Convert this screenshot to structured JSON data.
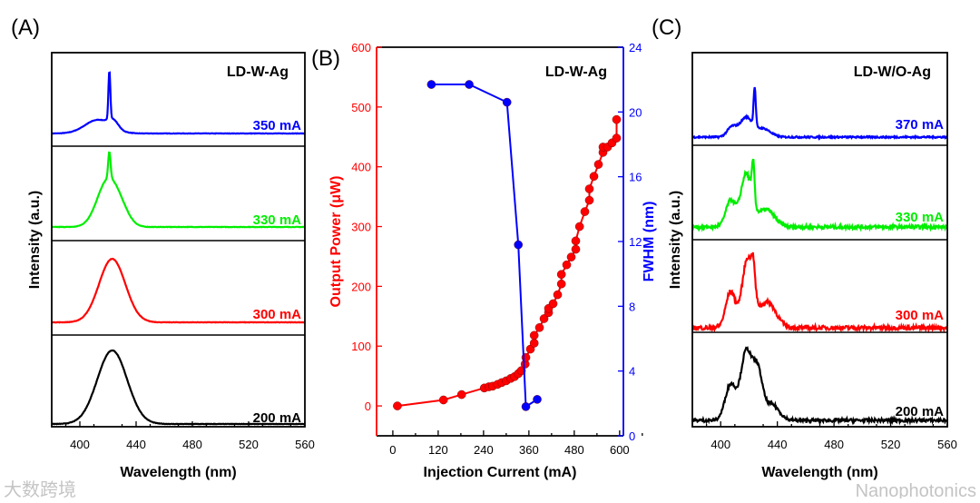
{
  "chart_data": [
    {
      "id": "A",
      "type": "line",
      "panel_label": "(A)",
      "title": "LD-W-Ag",
      "xlabel": "Wavelength (nm)",
      "ylabel": "Intensity (a.u.)",
      "xlim": [
        380,
        560
      ],
      "xticks": [
        400,
        440,
        480,
        520,
        560
      ],
      "stacked": true,
      "series": [
        {
          "name": "350 mA",
          "color": "#0000ff",
          "noise": 0.003,
          "components": [
            {
              "center": 413,
              "fwhm": 22,
              "amp": 0.22
            },
            {
              "center": 421,
              "fwhm": 1.6,
              "amp": 0.78
            },
            {
              "center": 424,
              "fwhm": 8,
              "amp": 0.12
            }
          ]
        },
        {
          "name": "330 mA",
          "color": "#00ee00",
          "noise": 0.003,
          "components": [
            {
              "center": 420,
              "fwhm": 18,
              "amp": 0.62
            },
            {
              "center": 421,
              "fwhm": 2.0,
              "amp": 0.35
            },
            {
              "center": 430,
              "fwhm": 14,
              "amp": 0.12
            }
          ]
        },
        {
          "name": "300 mA",
          "color": "#ff0000",
          "noise": 0.003,
          "components": [
            {
              "center": 423,
              "fwhm": 22,
              "amp": 1.0
            }
          ]
        },
        {
          "name": "200 mA",
          "color": "#000000",
          "noise": 0.003,
          "components": [
            {
              "center": 423,
              "fwhm": 25,
              "amp": 1.0
            }
          ]
        }
      ]
    },
    {
      "id": "B",
      "type": "scatter",
      "panel_label": "(B)",
      "title": "LD-W-Ag",
      "xlabel": "Injection Current (mA)",
      "ylabel": "Output Power (μW)",
      "y2label": "FWHM (nm)",
      "xlim": [
        -43,
        610
      ],
      "ylim": [
        -50,
        600
      ],
      "y2lim": [
        0,
        24
      ],
      "xticks": [
        0,
        120,
        240,
        360,
        480,
        600
      ],
      "yticks": [
        0,
        100,
        200,
        300,
        400,
        500,
        600
      ],
      "y2ticks": [
        0,
        4,
        8,
        12,
        16,
        20,
        24
      ],
      "series": [
        {
          "name": "Output Power",
          "axis": "left",
          "color": "#ff0000",
          "x": [
            12,
            134,
            182,
            242,
            254,
            264,
            277,
            288,
            300,
            312,
            322,
            332,
            340,
            350,
            352,
            364,
            374,
            374,
            388,
            400,
            412,
            412,
            424,
            436,
            446,
            446,
            460,
            472,
            484,
            484,
            494,
            508,
            520,
            520,
            532,
            544,
            556,
            556,
            568,
            580,
            592,
            592
          ],
          "y": [
            0,
            10,
            19,
            30,
            32,
            33,
            36,
            39,
            42,
            46,
            49,
            54,
            59,
            70,
            81,
            95,
            105,
            118,
            131,
            146,
            156,
            163,
            171,
            186,
            204,
            220,
            236,
            249,
            262,
            276,
            300,
            325,
            344,
            363,
            384,
            404,
            424,
            433,
            433,
            440,
            448,
            479
          ]
        },
        {
          "name": "FWHM",
          "axis": "right",
          "color": "#0000ff",
          "x": [
            102,
            202,
            302,
            332,
            352,
            382
          ],
          "y": [
            21.7,
            21.7,
            20.6,
            11.8,
            1.8,
            2.25
          ]
        }
      ]
    },
    {
      "id": "C",
      "type": "line",
      "panel_label": "(C)",
      "title": "LD-W/O-Ag",
      "xlabel": "Wavelength (nm)",
      "ylabel": "Intensity (a.u.)",
      "xlim": [
        380,
        560
      ],
      "xticks": [
        400,
        440,
        480,
        520,
        560
      ],
      "stacked": true,
      "series": [
        {
          "name": "370 mA",
          "color": "#0000ff",
          "noise": 0.015,
          "components": [
            {
              "center": 408,
              "fwhm": 8,
              "amp": 0.18
            },
            {
              "center": 418,
              "fwhm": 10,
              "amp": 0.35
            },
            {
              "center": 424,
              "fwhm": 1.8,
              "amp": 0.7
            },
            {
              "center": 430,
              "fwhm": 12,
              "amp": 0.15
            }
          ]
        },
        {
          "name": "330 mA",
          "color": "#00ee00",
          "noise": 0.02,
          "components": [
            {
              "center": 407,
              "fwhm": 8,
              "amp": 0.3
            },
            {
              "center": 418,
              "fwhm": 9,
              "amp": 0.6
            },
            {
              "center": 423,
              "fwhm": 2.2,
              "amp": 0.45
            },
            {
              "center": 432,
              "fwhm": 14,
              "amp": 0.2
            }
          ]
        },
        {
          "name": "300 mA",
          "color": "#ff0000",
          "noise": 0.025,
          "components": [
            {
              "center": 407,
              "fwhm": 8,
              "amp": 0.42
            },
            {
              "center": 419,
              "fwhm": 9,
              "amp": 0.8
            },
            {
              "center": 423,
              "fwhm": 3,
              "amp": 0.3
            },
            {
              "center": 433,
              "fwhm": 14,
              "amp": 0.3
            }
          ]
        },
        {
          "name": "200 mA",
          "color": "#000000",
          "noise": 0.02,
          "components": [
            {
              "center": 407,
              "fwhm": 9,
              "amp": 0.45
            },
            {
              "center": 418,
              "fwhm": 9,
              "amp": 0.85
            },
            {
              "center": 426,
              "fwhm": 8,
              "amp": 0.6
            },
            {
              "center": 436,
              "fwhm": 12,
              "amp": 0.2
            }
          ]
        }
      ]
    }
  ],
  "watermarks": {
    "left": "大数跨境",
    "right": "Nanophotonics"
  }
}
